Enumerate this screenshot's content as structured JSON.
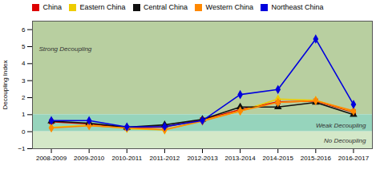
{
  "chart_data": {
    "type": "line",
    "categories": [
      "2008-2009",
      "2009-2010",
      "2010-2011",
      "2011-2012",
      "2012-2013",
      "2013-2014",
      "2014-2015",
      "2015-2016",
      "2016-2017"
    ],
    "series": [
      {
        "name": "China",
        "color": "#dd0000",
        "marker": "square",
        "values": [
          0.58,
          0.45,
          0.22,
          0.28,
          0.7,
          1.3,
          1.75,
          1.8,
          1.15
        ]
      },
      {
        "name": "Eastern China",
        "color": "#eecc00",
        "marker": "diamond",
        "values": [
          0.25,
          0.38,
          0.18,
          0.1,
          0.65,
          1.22,
          1.92,
          1.85,
          1.18
        ]
      },
      {
        "name": "Central China",
        "color": "#111111",
        "marker": "triangle",
        "values": [
          0.62,
          0.5,
          0.26,
          0.4,
          0.72,
          1.45,
          1.45,
          1.72,
          1.0
        ]
      },
      {
        "name": "Western China",
        "color": "#ff8800",
        "marker": "diamond",
        "values": [
          0.22,
          0.35,
          0.22,
          0.12,
          0.62,
          1.22,
          1.72,
          1.82,
          1.22
        ]
      },
      {
        "name": "Northeast China",
        "color": "#0000dd",
        "marker": "diamond",
        "values": [
          0.65,
          0.65,
          0.28,
          0.3,
          0.65,
          2.18,
          2.48,
          5.45,
          1.6
        ]
      }
    ],
    "ylabel": "Decoupling Index",
    "ylim": [
      -1,
      6.5
    ],
    "yticks": [
      -1,
      0,
      1,
      2,
      3,
      4,
      5,
      6
    ],
    "grid": false,
    "legend": "top",
    "zones": [
      {
        "label": "Strong Decoupling",
        "ymin": 1.0,
        "ymax": 6.5,
        "color": "#b8cfa0"
      },
      {
        "label": "Weak Decoupling",
        "ymin": 0.0,
        "ymax": 1.0,
        "color": "#96d4bc"
      },
      {
        "label": "No Decoupling",
        "ymin": -1.0,
        "ymax": 0.0,
        "color": "#d4e8c8"
      }
    ]
  }
}
